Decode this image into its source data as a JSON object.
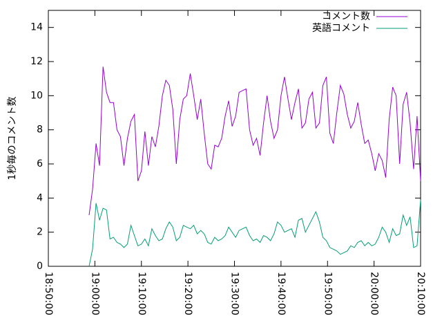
{
  "chart_data": {
    "type": "line",
    "ylabel": "1秒毎のコメント数",
    "x": [
      "18:58:45",
      "18:59:30",
      "19:00:15",
      "19:01:00",
      "19:01:45",
      "19:02:30",
      "19:03:15",
      "19:04:00",
      "19:04:45",
      "19:05:30",
      "19:06:15",
      "19:07:00",
      "19:07:45",
      "19:08:30",
      "19:09:15",
      "19:10:00",
      "19:10:45",
      "19:11:30",
      "19:12:15",
      "19:13:00",
      "19:13:45",
      "19:14:30",
      "19:15:15",
      "19:16:00",
      "19:16:45",
      "19:17:30",
      "19:18:15",
      "19:19:00",
      "19:19:45",
      "19:20:30",
      "19:21:15",
      "19:22:00",
      "19:22:45",
      "19:23:30",
      "19:24:15",
      "19:25:00",
      "19:25:45",
      "19:26:30",
      "19:27:15",
      "19:28:00",
      "19:28:45",
      "19:29:30",
      "19:30:15",
      "19:31:00",
      "19:31:45",
      "19:32:30",
      "19:33:15",
      "19:34:00",
      "19:34:45",
      "19:35:30",
      "19:36:15",
      "19:37:00",
      "19:37:45",
      "19:38:30",
      "19:39:15",
      "19:40:00",
      "19:40:45",
      "19:41:30",
      "19:42:15",
      "19:43:00",
      "19:43:45",
      "19:44:30",
      "19:45:15",
      "19:46:00",
      "19:46:45",
      "19:47:30",
      "19:48:15",
      "19:49:00",
      "19:49:45",
      "19:50:30",
      "19:51:15",
      "19:52:00",
      "19:52:45",
      "19:53:30",
      "19:54:15",
      "19:55:00",
      "19:55:45",
      "19:56:30",
      "19:57:15",
      "19:58:00",
      "19:58:45",
      "19:59:30",
      "20:00:15",
      "20:01:00",
      "20:01:45",
      "20:02:30",
      "20:03:15",
      "20:04:00",
      "20:04:45",
      "20:05:30",
      "20:06:15",
      "20:07:00",
      "20:07:45",
      "20:08:30",
      "20:09:15",
      "20:10:00"
    ],
    "series": [
      {
        "name": "コメント数",
        "color": "#9400d3",
        "values": [
          3.0,
          4.5,
          7.2,
          5.9,
          11.7,
          10.2,
          9.6,
          9.6,
          8.0,
          7.6,
          5.9,
          7.5,
          8.5,
          8.9,
          5.0,
          5.6,
          7.9,
          5.9,
          7.6,
          7.0,
          8.2,
          10.0,
          10.9,
          10.6,
          9.2,
          6.0,
          8.6,
          9.8,
          10.0,
          11.3,
          10.0,
          8.6,
          9.8,
          7.8,
          6.0,
          5.7,
          7.1,
          7.0,
          7.5,
          8.8,
          9.7,
          8.2,
          8.8,
          10.2,
          10.3,
          10.4,
          8.0,
          7.1,
          7.5,
          6.5,
          8.4,
          10.0,
          8.5,
          7.5,
          8.0,
          10.0,
          11.1,
          9.8,
          8.6,
          9.6,
          10.4,
          8.1,
          8.4,
          9.8,
          10.2,
          8.1,
          8.4,
          10.6,
          11.1,
          7.8,
          7.2,
          9.0,
          10.6,
          10.1,
          8.9,
          8.1,
          8.5,
          9.6,
          8.3,
          7.2,
          7.4,
          6.6,
          5.6,
          6.6,
          6.2,
          5.2,
          8.6,
          10.5,
          10.0,
          6.0,
          9.5,
          10.2,
          8.4,
          5.7,
          8.8,
          5.0
        ]
      },
      {
        "name": "英語コメント",
        "color": "#009e73",
        "values": [
          0,
          1.0,
          3.7,
          2.7,
          3.4,
          3.3,
          1.6,
          1.7,
          1.4,
          1.3,
          1.1,
          1.3,
          2.4,
          1.8,
          1.2,
          1.3,
          1.6,
          1.2,
          2.2,
          1.8,
          1.5,
          1.6,
          2.2,
          2.6,
          2.3,
          1.5,
          1.7,
          2.4,
          2.3,
          2.2,
          2.4,
          1.9,
          2.1,
          1.9,
          1.4,
          1.3,
          1.7,
          1.5,
          1.6,
          1.8,
          2.3,
          2.0,
          1.7,
          2.1,
          2.2,
          2.3,
          1.8,
          1.5,
          1.6,
          1.4,
          1.8,
          1.7,
          1.5,
          1.9,
          2.6,
          2.4,
          2.0,
          2.1,
          2.2,
          1.7,
          2.7,
          2.8,
          2.0,
          2.4,
          2.8,
          3.2,
          2.6,
          1.7,
          1.5,
          1.1,
          1.0,
          0.9,
          0.7,
          0.8,
          0.9,
          1.2,
          1.1,
          1.4,
          1.5,
          1.2,
          1.4,
          1.2,
          1.3,
          1.7,
          2.3,
          2.0,
          1.4,
          2.2,
          1.8,
          1.9,
          3.0,
          2.4,
          2.9,
          1.1,
          1.2,
          3.9
        ]
      }
    ],
    "xlim": [
      "18:50:00",
      "20:10:00"
    ],
    "xticks": [
      "18:50:00",
      "19:00:00",
      "19:10:00",
      "19:20:00",
      "19:30:00",
      "19:40:00",
      "19:50:00",
      "20:00:00",
      "20:10:00"
    ],
    "ylim": [
      0,
      15
    ],
    "yticks": [
      0,
      2,
      4,
      6,
      8,
      10,
      12,
      14
    ],
    "legend": "top-right"
  }
}
